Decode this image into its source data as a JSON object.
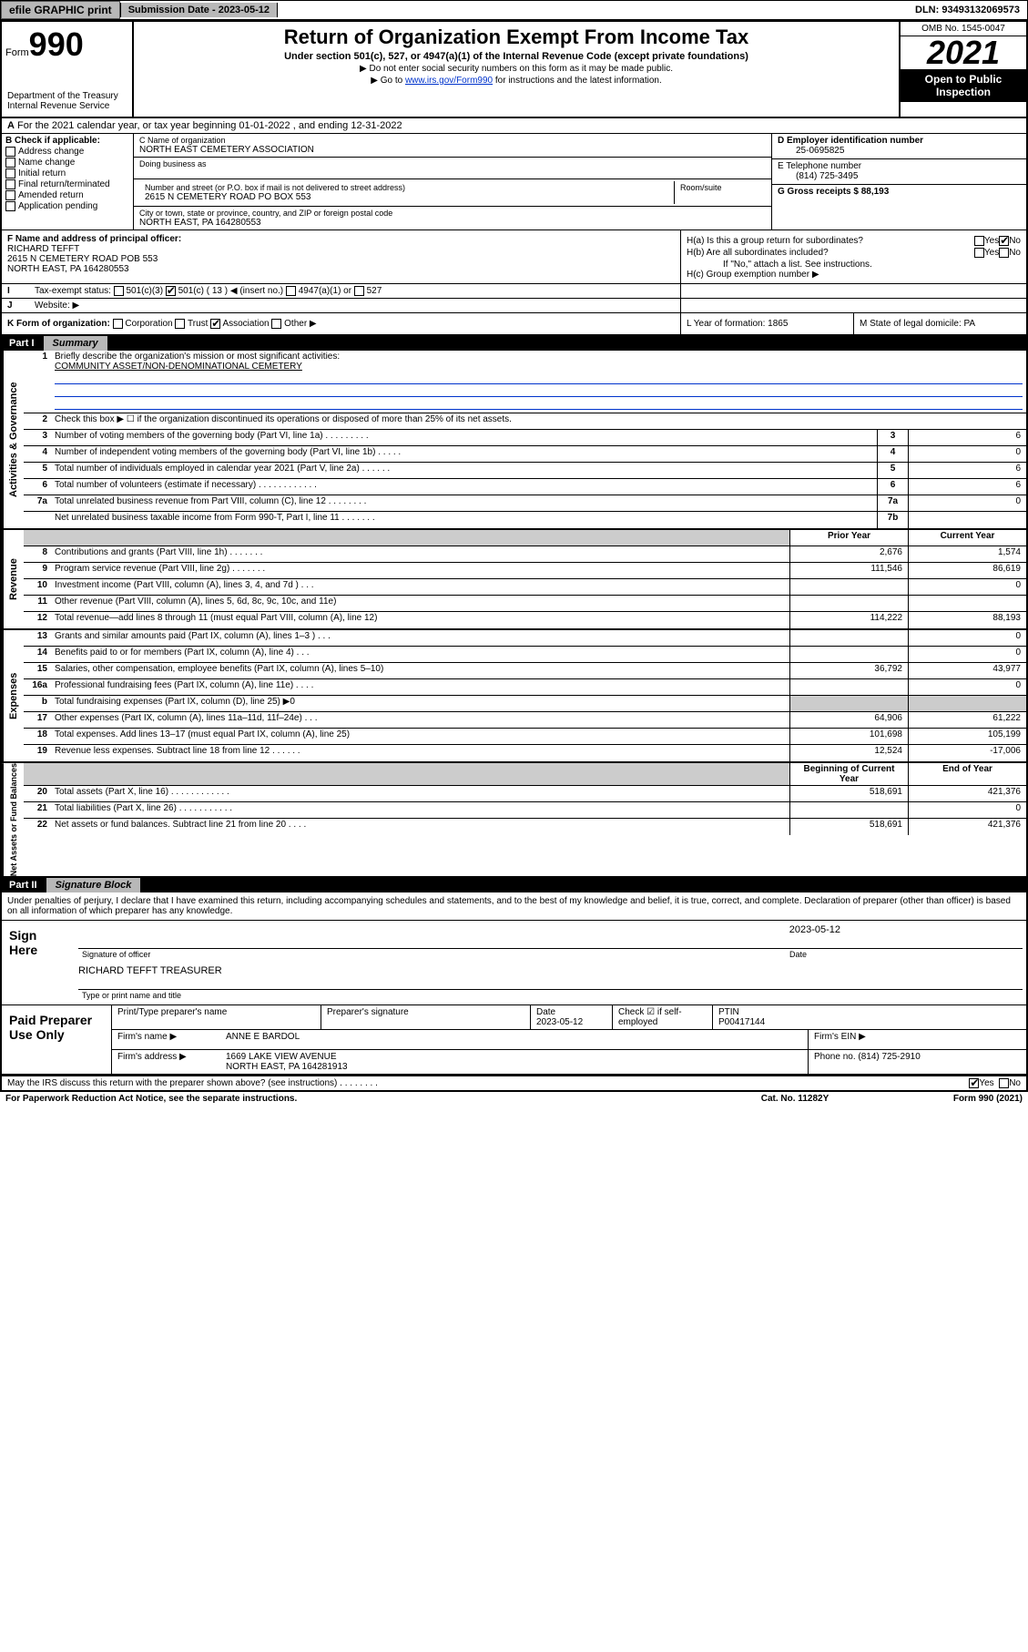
{
  "topbar": {
    "efile": "efile GRAPHIC print",
    "sub_label": "Submission Date - 2023-05-12",
    "dln": "DLN: 93493132069573"
  },
  "header": {
    "form_word": "Form",
    "form_num": "990",
    "title": "Return of Organization Exempt From Income Tax",
    "subtitle": "Under section 501(c), 527, or 4947(a)(1) of the Internal Revenue Code (except private foundations)",
    "note1": "▶ Do not enter social security numbers on this form as it may be made public.",
    "note2_pre": "▶ Go to ",
    "note2_link": "www.irs.gov/Form990",
    "note2_post": " for instructions and the latest information.",
    "omb": "OMB No. 1545-0047",
    "year": "2021",
    "open_public": "Open to Public Inspection",
    "dept": "Department of the Treasury Internal Revenue Service"
  },
  "row_a": {
    "label_a": "A",
    "text": "For the 2021 calendar year, or tax year beginning 01-01-2022   , and ending 12-31-2022"
  },
  "col_b": {
    "header": "B Check if applicable:",
    "items": [
      "Address change",
      "Name change",
      "Initial return",
      "Final return/terminated",
      "Amended return",
      "Application pending"
    ]
  },
  "col_c": {
    "name_label": "C Name of organization",
    "name": "NORTH EAST CEMETERY ASSOCIATION",
    "dba_label": "Doing business as",
    "dba": "",
    "addr_label": "Number and street (or P.O. box if mail is not delivered to street address)",
    "room_label": "Room/suite",
    "addr": "2615 N CEMETERY ROAD PO BOX 553",
    "city_label": "City or town, state or province, country, and ZIP or foreign postal code",
    "city": "NORTH EAST, PA  164280553"
  },
  "col_de": {
    "d_label": "D Employer identification number",
    "ein": "25-0695825",
    "e_label": "E Telephone number",
    "phone": "(814) 725-3495",
    "g_label": "G Gross receipts $ 88,193"
  },
  "col_f": {
    "label": "F Name and address of principal officer:",
    "name": "RICHARD TEFFT",
    "addr1": "2615 N CEMETERY ROAD POB 553",
    "addr2": "NORTH EAST, PA  164280553"
  },
  "col_h": {
    "ha": "H(a)  Is this a group return for subordinates?",
    "hb": "H(b)  Are all subordinates included?",
    "hb_note": "If \"No,\" attach a list. See instructions.",
    "hc": "H(c)  Group exemption number ▶",
    "yes": "Yes",
    "no": "No"
  },
  "row_i": {
    "label": "I",
    "text": "Tax-exempt status:",
    "opt1": "501(c)(3)",
    "opt2": "501(c) ( 13 ) ◀ (insert no.)",
    "opt3": "4947(a)(1) or",
    "opt4": "527"
  },
  "row_j": {
    "label": "J",
    "text": "Website: ▶"
  },
  "row_k": {
    "k": "K Form of organization:",
    "opts": [
      "Corporation",
      "Trust",
      "Association",
      "Other ▶"
    ],
    "l": "L Year of formation: 1865",
    "m": "M State of legal domicile: PA"
  },
  "part1": {
    "num": "Part I",
    "title": "Summary"
  },
  "summary": {
    "q1": "Briefly describe the organization's mission or most significant activities:",
    "mission": "COMMUNITY ASSET/NON-DENOMINATIONAL CEMETERY",
    "q2": "Check this box ▶ ☐  if the organization discontinued its operations or disposed of more than 25% of its net assets.",
    "rows_gov": [
      {
        "n": "3",
        "d": "Number of voting members of the governing body (Part VI, line 1a)   .    .    .    .    .    .    .    .    .",
        "box": "3",
        "v": "6"
      },
      {
        "n": "4",
        "d": "Number of independent voting members of the governing body (Part VI, line 1b)    .    .    .    .    .",
        "box": "4",
        "v": "0"
      },
      {
        "n": "5",
        "d": "Total number of individuals employed in calendar year 2021 (Part V, line 2a)    .    .    .    .    .    .",
        "box": "5",
        "v": "6"
      },
      {
        "n": "6",
        "d": "Total number of volunteers (estimate if necessary)    .    .    .    .    .    .    .    .    .    .    .    .",
        "box": "6",
        "v": "6"
      },
      {
        "n": "7a",
        "d": "Total unrelated business revenue from Part VIII, column (C), line 12    .    .    .    .    .    .    .    .",
        "box": "7a",
        "v": "0"
      },
      {
        "n": "",
        "d": "Net unrelated business taxable income from Form 990-T, Part I, line 11    .    .    .    .    .    .    .",
        "box": "7b",
        "v": ""
      }
    ],
    "head_prior": "Prior Year",
    "head_curr": "Current Year",
    "rows_rev": [
      {
        "n": "8",
        "d": "Contributions and grants (Part VIII, line 1h)    .    .    .    .    .    .    .",
        "p": "2,676",
        "c": "1,574"
      },
      {
        "n": "9",
        "d": "Program service revenue (Part VIII, line 2g)    .    .    .    .    .    .    .",
        "p": "111,546",
        "c": "86,619"
      },
      {
        "n": "10",
        "d": "Investment income (Part VIII, column (A), lines 3, 4, and 7d )    .    .    .",
        "p": "",
        "c": "0"
      },
      {
        "n": "11",
        "d": "Other revenue (Part VIII, column (A), lines 5, 6d, 8c, 9c, 10c, and 11e)",
        "p": "",
        "c": ""
      },
      {
        "n": "12",
        "d": "Total revenue—add lines 8 through 11 (must equal Part VIII, column (A), line 12)",
        "p": "114,222",
        "c": "88,193"
      }
    ],
    "rows_exp": [
      {
        "n": "13",
        "d": "Grants and similar amounts paid (Part IX, column (A), lines 1–3 )    .    .    .",
        "p": "",
        "c": "0"
      },
      {
        "n": "14",
        "d": "Benefits paid to or for members (Part IX, column (A), line 4)    .    .    .",
        "p": "",
        "c": "0"
      },
      {
        "n": "15",
        "d": "Salaries, other compensation, employee benefits (Part IX, column (A), lines 5–10)",
        "p": "36,792",
        "c": "43,977"
      },
      {
        "n": "16a",
        "d": "Professional fundraising fees (Part IX, column (A), line 11e)    .    .    .    .",
        "p": "",
        "c": "0"
      },
      {
        "n": "b",
        "d": "Total fundraising expenses (Part IX, column (D), line 25) ▶0",
        "p": "gray",
        "c": "gray"
      },
      {
        "n": "17",
        "d": "Other expenses (Part IX, column (A), lines 11a–11d, 11f–24e)    .    .    .",
        "p": "64,906",
        "c": "61,222"
      },
      {
        "n": "18",
        "d": "Total expenses. Add lines 13–17 (must equal Part IX, column (A), line 25)",
        "p": "101,698",
        "c": "105,199"
      },
      {
        "n": "19",
        "d": "Revenue less expenses. Subtract line 18 from line 12    .    .    .    .    .    .",
        "p": "12,524",
        "c": "-17,006"
      }
    ],
    "head_begin": "Beginning of Current Year",
    "head_end": "End of Year",
    "rows_net": [
      {
        "n": "20",
        "d": "Total assets (Part X, line 16)    .    .    .    .    .    .    .    .    .    .    .    .",
        "p": "518,691",
        "c": "421,376"
      },
      {
        "n": "21",
        "d": "Total liabilities (Part X, line 26)    .    .    .    .    .    .    .    .    .    .    .",
        "p": "",
        "c": "0"
      },
      {
        "n": "22",
        "d": "Net assets or fund balances. Subtract line 21 from line 20    .    .    .    .",
        "p": "518,691",
        "c": "421,376"
      }
    ]
  },
  "vlabels": {
    "gov": "Activities & Governance",
    "rev": "Revenue",
    "exp": "Expenses",
    "net": "Net Assets or Fund Balances"
  },
  "part2": {
    "num": "Part II",
    "title": "Signature Block"
  },
  "sig": {
    "decl": "Under penalties of perjury, I declare that I have examined this return, including accompanying schedules and statements, and to the best of my knowledge and belief, it is true, correct, and complete. Declaration of preparer (other than officer) is based on all information of which preparer has any knowledge.",
    "sign_here": "Sign Here",
    "sig_officer": "Signature of officer",
    "date": "Date",
    "date_val": "2023-05-12",
    "name_title": "RICHARD TEFFT TREASURER",
    "type_label": "Type or print name and title"
  },
  "prep": {
    "label": "Paid Preparer Use Only",
    "h1": "Print/Type preparer's name",
    "h2": "Preparer's signature",
    "h3": "Date",
    "h3v": "2023-05-12",
    "h4": "Check ☑ if self-employed",
    "h5": "PTIN",
    "ptin": "P00417144",
    "firm_name_l": "Firm's name    ▶",
    "firm_name": "ANNE E BARDOL",
    "firm_ein_l": "Firm's EIN ▶",
    "firm_addr_l": "Firm's address ▶",
    "firm_addr1": "1669 LAKE VIEW AVENUE",
    "firm_addr2": "NORTH EAST, PA  164281913",
    "phone_l": "Phone no. (814) 725-2910"
  },
  "footer": {
    "discuss": "May the IRS discuss this return with the preparer shown above? (see instructions)    .    .    .    .    .    .    .    .",
    "yes": "Yes",
    "no": "No",
    "paperwork": "For Paperwork Reduction Act Notice, see the separate instructions.",
    "cat": "Cat. No. 11282Y",
    "form": "Form 990 (2021)"
  }
}
